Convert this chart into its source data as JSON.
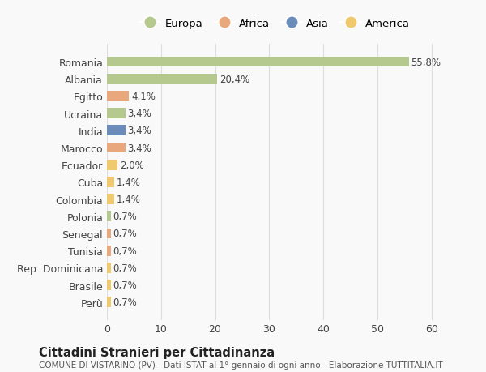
{
  "categories": [
    "Romania",
    "Albania",
    "Egitto",
    "Ucraina",
    "India",
    "Marocco",
    "Ecuador",
    "Cuba",
    "Colombia",
    "Polonia",
    "Senegal",
    "Tunisia",
    "Rep. Dominicana",
    "Brasile",
    "Perù"
  ],
  "values": [
    55.8,
    20.4,
    4.1,
    3.4,
    3.4,
    3.4,
    2.0,
    1.4,
    1.4,
    0.7,
    0.7,
    0.7,
    0.7,
    0.7,
    0.7
  ],
  "labels": [
    "55,8%",
    "20,4%",
    "4,1%",
    "3,4%",
    "3,4%",
    "3,4%",
    "2,0%",
    "1,4%",
    "1,4%",
    "0,7%",
    "0,7%",
    "0,7%",
    "0,7%",
    "0,7%",
    "0,7%"
  ],
  "colors": [
    "#b5c98e",
    "#b5c98e",
    "#e8a87c",
    "#b5c98e",
    "#6b8cba",
    "#e8a87c",
    "#f0c96e",
    "#f0c96e",
    "#f0c96e",
    "#b5c98e",
    "#e8a87c",
    "#e8a87c",
    "#f0c96e",
    "#f0c96e",
    "#f0c96e"
  ],
  "legend": [
    {
      "label": "Europa",
      "color": "#b5c98e"
    },
    {
      "label": "Africa",
      "color": "#e8a87c"
    },
    {
      "label": "Asia",
      "color": "#6b8cba"
    },
    {
      "label": "America",
      "color": "#f0c96e"
    }
  ],
  "xlim": [
    0,
    62
  ],
  "xticks": [
    0,
    10,
    20,
    30,
    40,
    50,
    60
  ],
  "title": "Cittadini Stranieri per Cittadinanza",
  "subtitle": "COMUNE DI VISTARINO (PV) - Dati ISTAT al 1° gennaio di ogni anno - Elaborazione TUTTITALIA.IT",
  "bg_color": "#f9f9f9",
  "grid_color": "#dddddd",
  "bar_height": 0.6,
  "label_fontsize": 8.5,
  "tick_fontsize": 9
}
